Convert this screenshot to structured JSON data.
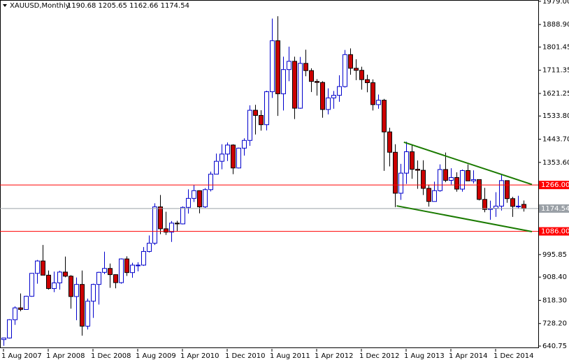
{
  "chart_data": {
    "type": "candlestick",
    "title": "XAUUSD,Monthly",
    "subtitle": "1190.68 1205.65 1162.66 1174.54",
    "categories": [
      "1 Aug 2007",
      null,
      null,
      null,
      null,
      null,
      null,
      null,
      "1 Apr 2008",
      null,
      null,
      null,
      null,
      null,
      null,
      null,
      "1 Dec 2008",
      null,
      null,
      null,
      null,
      null,
      null,
      null,
      "1 Aug 2009",
      null,
      null,
      null,
      null,
      null,
      null,
      null,
      "1 Apr 2010",
      null,
      null,
      null,
      null,
      null,
      null,
      null,
      "1 Dec 2010",
      null,
      null,
      null,
      null,
      null,
      null,
      null,
      "1 Aug 2011",
      null,
      null,
      null,
      null,
      null,
      null,
      null,
      "1 Apr 2012",
      null,
      null,
      null,
      null,
      null,
      null,
      null,
      "1 Dec 2012",
      null,
      null,
      null,
      null,
      null,
      null,
      null,
      "1 Aug 2013",
      null,
      null,
      null,
      null,
      null,
      null,
      null,
      "1 Apr 2014",
      null,
      null,
      null,
      null,
      null,
      null,
      null,
      "1 Dec 2014",
      null,
      null,
      null,
      null,
      null
    ],
    "open": [
      666,
      672,
      743,
      789,
      783,
      834,
      923,
      971,
      916,
      864,
      886,
      928,
      912,
      833,
      880,
      718,
      815,
      880,
      927,
      942,
      918,
      887,
      979,
      926,
      955,
      955,
      1008,
      1040,
      1181,
      1096,
      1083,
      1118,
      1115,
      1179,
      1214,
      1244,
      1181,
      1248,
      1308,
      1358,
      1386,
      1421,
      1332,
      1409,
      1439,
      1556,
      1536,
      1500,
      1628,
      1826,
      1620,
      1714,
      1746,
      1564,
      1738,
      1710,
      1668,
      1664,
      1559,
      1604,
      1614,
      1648,
      1772,
      1719,
      1711,
      1675,
      1663,
      1578,
      1595,
      1472,
      1393,
      1234,
      1312,
      1395,
      1327,
      1323,
      1253,
      1202,
      1244,
      1326,
      1284,
      1295,
      1250,
      1322,
      1282,
      1287,
      1210,
      1171,
      1175,
      1184,
      1283,
      1213,
      1183,
      1190.68
    ],
    "high": [
      673,
      745,
      795,
      845,
      836,
      924,
      975,
      1033,
      934,
      930,
      933,
      988,
      916,
      907,
      934,
      825,
      883,
      929,
      1007,
      961,
      919,
      981,
      989,
      964,
      966,
      1025,
      1070,
      1195,
      1227,
      1162,
      1126,
      1127,
      1183,
      1249,
      1265,
      1245,
      1254,
      1318,
      1388,
      1424,
      1431,
      1424,
      1411,
      1447,
      1575,
      1577,
      1556,
      1632,
      1912,
      1921,
      1764,
      1803,
      1764,
      1763,
      1791,
      1719,
      1677,
      1669,
      1641,
      1631,
      1692,
      1790,
      1796,
      1754,
      1725,
      1694,
      1676,
      1617,
      1600,
      1488,
      1424,
      1348,
      1434,
      1424,
      1361,
      1362,
      1267,
      1279,
      1346,
      1392,
      1331,
      1315,
      1326,
      1346,
      1323,
      1288,
      1255,
      1205,
      1238,
      1307,
      1284,
      1220,
      1224,
      1205.65
    ],
    "low": [
      642,
      670,
      723,
      776,
      782,
      832,
      883,
      918,
      860,
      850,
      860,
      908,
      786,
      741,
      681,
      705,
      750,
      802,
      920,
      867,
      865,
      883,
      913,
      906,
      931,
      952,
      1004,
      1033,
      1075,
      1072,
      1045,
      1085,
      1113,
      1155,
      1200,
      1156,
      1177,
      1241,
      1308,
      1327,
      1359,
      1308,
      1330,
      1380,
      1418,
      1462,
      1477,
      1478,
      1604,
      1534,
      1555,
      1669,
      1522,
      1562,
      1688,
      1627,
      1613,
      1527,
      1540,
      1562,
      1589,
      1644,
      1694,
      1673,
      1636,
      1626,
      1555,
      1562,
      1321,
      1338,
      1180,
      1208,
      1270,
      1290,
      1251,
      1227,
      1182,
      1202,
      1240,
      1277,
      1268,
      1240,
      1240,
      1281,
      1272,
      1206,
      1160,
      1131,
      1142,
      1167,
      1197,
      1142,
      1175,
      1162.66
    ],
    "close": [
      672,
      743,
      789,
      783,
      834,
      923,
      971,
      916,
      864,
      886,
      928,
      912,
      833,
      880,
      718,
      815,
      880,
      927,
      942,
      918,
      887,
      979,
      926,
      955,
      955,
      1008,
      1040,
      1181,
      1096,
      1083,
      1118,
      1115,
      1179,
      1214,
      1244,
      1181,
      1248,
      1308,
      1358,
      1386,
      1421,
      1332,
      1409,
      1439,
      1556,
      1536,
      1500,
      1628,
      1826,
      1620,
      1714,
      1746,
      1564,
      1738,
      1710,
      1668,
      1664,
      1559,
      1604,
      1614,
      1648,
      1772,
      1719,
      1711,
      1675,
      1663,
      1578,
      1595,
      1472,
      1393,
      1234,
      1312,
      1395,
      1327,
      1323,
      1253,
      1202,
      1244,
      1326,
      1284,
      1295,
      1250,
      1322,
      1282,
      1287,
      1210,
      1171,
      1175,
      1184,
      1283,
      1213,
      1183,
      1184,
      1174.54
    ],
    "up_color": "#0000cc",
    "down_color": "#cc0000",
    "ylim": [
      630,
      1984
    ],
    "yticks": [
      {
        "value": 1979,
        "label": "1979.00"
      },
      {
        "value": 1888.9,
        "label": "1888.90"
      },
      {
        "value": 1801.45,
        "label": "1801.45"
      },
      {
        "value": 1711.35,
        "label": "1711.35"
      },
      {
        "value": 1621.25,
        "label": "1621.25"
      },
      {
        "value": 1533.8,
        "label": "1533.80"
      },
      {
        "value": 1443.7,
        "label": "1443.70"
      },
      {
        "value": 1353.6,
        "label": "1353.60"
      },
      {
        "value": 995.85,
        "label": "995.85"
      },
      {
        "value": 908.4,
        "label": "908.40"
      },
      {
        "value": 818.3,
        "label": "818.30"
      },
      {
        "value": 728.2,
        "label": "728.20"
      },
      {
        "value": 640.75,
        "label": "640.75"
      }
    ],
    "hlines": [
      {
        "value": 1266,
        "label": "1266.00",
        "color": "#ff0000"
      },
      {
        "value": 1086,
        "label": "1086.00",
        "color": "#ff0000"
      },
      {
        "value": 1174.54,
        "label": "1174.54",
        "color": "#9aa0a6"
      }
    ],
    "trendlines": [
      {
        "start": [
          71.6,
          1432
        ],
        "end": [
          94.5,
          1268
        ],
        "color": "#1a7a00"
      },
      {
        "start": [
          70.3,
          1185
        ],
        "end": [
          94.5,
          1085
        ],
        "color": "#1a7a00"
      }
    ]
  }
}
